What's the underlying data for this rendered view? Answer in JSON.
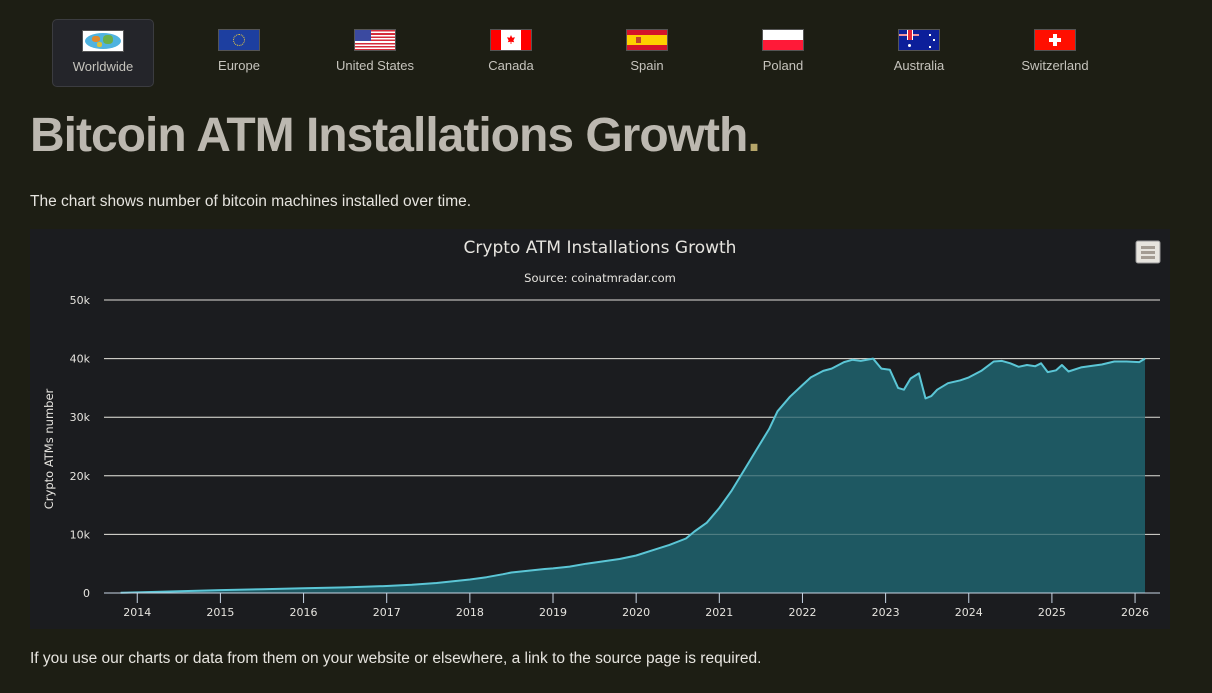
{
  "tabs": [
    {
      "label": "Worldwide",
      "icon": "world-map-flag-icon",
      "active": true
    },
    {
      "label": "Europe",
      "icon": "eu-flag-icon",
      "active": false
    },
    {
      "label": "United States",
      "icon": "us-flag-icon",
      "active": false
    },
    {
      "label": "Canada",
      "icon": "canada-flag-icon",
      "active": false
    },
    {
      "label": "Spain",
      "icon": "spain-flag-icon",
      "active": false
    },
    {
      "label": "Poland",
      "icon": "poland-flag-icon",
      "active": false
    },
    {
      "label": "Australia",
      "icon": "australia-flag-icon",
      "active": false
    },
    {
      "label": "Switzerland",
      "icon": "switzerland-flag-icon",
      "active": false
    }
  ],
  "page": {
    "title": "Bitcoin ATM Installations Growth",
    "title_dot": ".",
    "description": "The chart shows number of bitcoin machines installed over time.",
    "footer": "If you use our charts or data from them on your website or elsewhere, a link to the source page is required."
  },
  "colors": {
    "line": "#5bc6d6",
    "area": "#1f5c66",
    "accent_dot": "#b6a66a"
  },
  "chart_data": {
    "type": "area",
    "title": "Crypto ATM Installations Growth",
    "subtitle": "Source: coinatmradar.com",
    "xlabel": "",
    "ylabel": "Crypto ATMs number",
    "xlim": [
      2013.6,
      2026.3
    ],
    "ylim": [
      0,
      50000
    ],
    "grid": true,
    "legend": "none",
    "x_ticks": [
      "2014",
      "2015",
      "2016",
      "2017",
      "2018",
      "2019",
      "2020",
      "2021",
      "2022",
      "2023",
      "2024",
      "2025",
      "2026"
    ],
    "y_ticks": [
      "0",
      "10k",
      "20k",
      "30k",
      "40k",
      "50k"
    ],
    "y_tick_values": [
      0,
      10000,
      20000,
      30000,
      40000,
      50000
    ],
    "menu_icon": "hamburger-menu-icon",
    "series": [
      {
        "name": "Crypto ATMs",
        "x": [
          2013.8,
          2014.0,
          2014.5,
          2015.0,
          2015.5,
          2016.0,
          2016.5,
          2017.0,
          2017.3,
          2017.6,
          2017.8,
          2018.0,
          2018.2,
          2018.4,
          2018.5,
          2018.7,
          2018.9,
          2019.0,
          2019.2,
          2019.4,
          2019.6,
          2019.8,
          2020.0,
          2020.2,
          2020.4,
          2020.6,
          2020.7,
          2020.85,
          2021.0,
          2021.15,
          2021.3,
          2021.45,
          2021.6,
          2021.7,
          2021.85,
          2022.0,
          2022.1,
          2022.25,
          2022.35,
          2022.5,
          2022.6,
          2022.7,
          2022.85,
          2022.95,
          2023.05,
          2023.15,
          2023.22,
          2023.3,
          2023.4,
          2023.48,
          2023.55,
          2023.62,
          2023.75,
          2023.9,
          2024.0,
          2024.15,
          2024.3,
          2024.4,
          2024.5,
          2024.6,
          2024.7,
          2024.8,
          2024.87,
          2024.95,
          2025.05,
          2025.12,
          2025.2,
          2025.35,
          2025.5,
          2025.6,
          2025.75,
          2025.9,
          2026.05,
          2026.12
        ],
        "values": [
          50,
          100,
          300,
          500,
          650,
          800,
          950,
          1200,
          1400,
          1700,
          2000,
          2300,
          2700,
          3200,
          3500,
          3800,
          4100,
          4200,
          4500,
          5000,
          5400,
          5800,
          6400,
          7300,
          8200,
          9300,
          10500,
          12000,
          14500,
          17500,
          21000,
          24500,
          28000,
          31000,
          33500,
          35500,
          36800,
          37900,
          38300,
          39400,
          39800,
          39600,
          40000,
          38300,
          38100,
          35000,
          34700,
          36600,
          37500,
          33200,
          33600,
          34700,
          35800,
          36300,
          36800,
          37900,
          39500,
          39600,
          39200,
          38600,
          38900,
          38700,
          39200,
          37700,
          38000,
          38900,
          37800,
          38500,
          38800,
          39000,
          39500,
          39500,
          39400,
          40000
        ]
      }
    ]
  }
}
